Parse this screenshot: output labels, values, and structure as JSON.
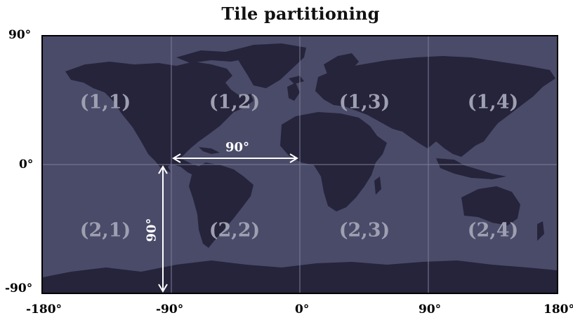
{
  "title": "Tile partitioning",
  "colors": {
    "ocean": "#4a4b69",
    "land": "#25243b",
    "grid": "#7d7e98",
    "tile_label": "#9e9fb0",
    "annotation": "#ffffff",
    "frame": "#000000"
  },
  "axes": {
    "y_ticks": [
      "90°",
      "0°",
      "-90°"
    ],
    "x_ticks": [
      "-180°",
      "-90°",
      "0°",
      "90°",
      "180°"
    ]
  },
  "tiles": {
    "r1c1": "(1,1)",
    "r1c2": "(1,2)",
    "r1c3": "(1,3)",
    "r1c4": "(1,4)",
    "r2c1": "(2,1)",
    "r2c2": "(2,2)",
    "r2c3": "(2,3)",
    "r2c4": "(2,4)"
  },
  "annotations": {
    "horizontal_span": "90°",
    "vertical_span": "90°"
  }
}
